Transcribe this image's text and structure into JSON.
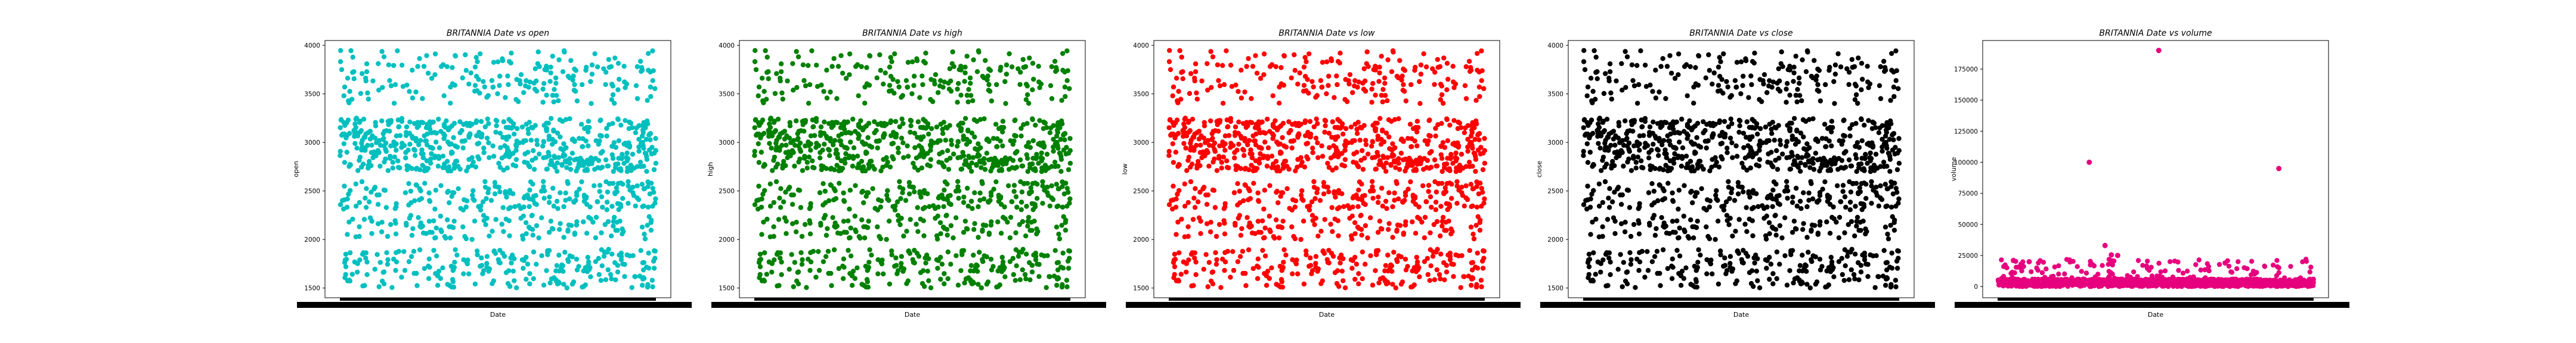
{
  "chart_data": [
    {
      "type": "scatter",
      "title": "BRITANNIA Date vs open",
      "xlabel": "Date",
      "ylabel": "open",
      "color": "#00bfbf",
      "ylim": [
        1400,
        4050
      ],
      "yticks": [
        1500,
        2000,
        2500,
        3000,
        3500,
        4000
      ],
      "bands": [
        {
          "lo": 1500,
          "hi": 1900,
          "weight": 0.18
        },
        {
          "lo": 2000,
          "hi": 2250,
          "weight": 0.1
        },
        {
          "lo": 2300,
          "hi": 2600,
          "weight": 0.17
        },
        {
          "lo": 2700,
          "hi": 3250,
          "weight": 0.4
        },
        {
          "lo": 3400,
          "hi": 3950,
          "weight": 0.15
        }
      ],
      "outliers": []
    },
    {
      "type": "scatter",
      "title": "BRITANNIA Date vs high",
      "xlabel": "Date",
      "ylabel": "high",
      "color": "#008000",
      "ylim": [
        1400,
        4050
      ],
      "yticks": [
        1500,
        2000,
        2500,
        3000,
        3500,
        4000
      ],
      "bands": [
        {
          "lo": 1500,
          "hi": 1900,
          "weight": 0.18
        },
        {
          "lo": 2000,
          "hi": 2250,
          "weight": 0.1
        },
        {
          "lo": 2300,
          "hi": 2600,
          "weight": 0.17
        },
        {
          "lo": 2700,
          "hi": 3250,
          "weight": 0.4
        },
        {
          "lo": 3400,
          "hi": 3950,
          "weight": 0.15
        }
      ],
      "outliers": []
    },
    {
      "type": "scatter",
      "title": "BRITANNIA Date vs low",
      "xlabel": "Date",
      "ylabel": "low",
      "color": "#ff0000",
      "ylim": [
        1400,
        4050
      ],
      "yticks": [
        1500,
        2000,
        2500,
        3000,
        3500,
        4000
      ],
      "bands": [
        {
          "lo": 1500,
          "hi": 1900,
          "weight": 0.18
        },
        {
          "lo": 2000,
          "hi": 2250,
          "weight": 0.1
        },
        {
          "lo": 2300,
          "hi": 2600,
          "weight": 0.17
        },
        {
          "lo": 2700,
          "hi": 3250,
          "weight": 0.4
        },
        {
          "lo": 3400,
          "hi": 3950,
          "weight": 0.15
        }
      ],
      "outliers": []
    },
    {
      "type": "scatter",
      "title": "BRITANNIA Date vs close",
      "xlabel": "Date",
      "ylabel": "close",
      "color": "#000000",
      "ylim": [
        1400,
        4050
      ],
      "yticks": [
        1500,
        2000,
        2500,
        3000,
        3500,
        4000
      ],
      "bands": [
        {
          "lo": 1500,
          "hi": 1900,
          "weight": 0.18
        },
        {
          "lo": 2000,
          "hi": 2250,
          "weight": 0.1
        },
        {
          "lo": 2300,
          "hi": 2600,
          "weight": 0.17
        },
        {
          "lo": 2700,
          "hi": 3250,
          "weight": 0.4
        },
        {
          "lo": 3400,
          "hi": 3950,
          "weight": 0.15
        }
      ],
      "outliers": []
    },
    {
      "type": "scatter",
      "title": "BRITANNIA Date vs volume",
      "xlabel": "Date",
      "ylabel": "volume",
      "color": "#e6007e",
      "ylim": [
        -9000,
        198000
      ],
      "yticks": [
        0,
        25000,
        50000,
        75000,
        100000,
        125000,
        150000,
        175000
      ],
      "bands": [
        {
          "lo": 0,
          "hi": 6000,
          "weight": 0.9
        },
        {
          "lo": 6000,
          "hi": 22000,
          "weight": 0.1
        }
      ],
      "outliers": [
        {
          "x": 0.29,
          "y": 100000
        },
        {
          "x": 0.51,
          "y": 190000
        },
        {
          "x": 0.89,
          "y": 95000
        },
        {
          "x": 0.34,
          "y": 33000
        },
        {
          "x": 0.38,
          "y": 25000
        },
        {
          "x": 0.36,
          "y": 25500
        },
        {
          "x": 0.1,
          "y": 20000
        },
        {
          "x": 0.05,
          "y": 21000
        },
        {
          "x": 0.72,
          "y": 19000
        }
      ]
    }
  ]
}
